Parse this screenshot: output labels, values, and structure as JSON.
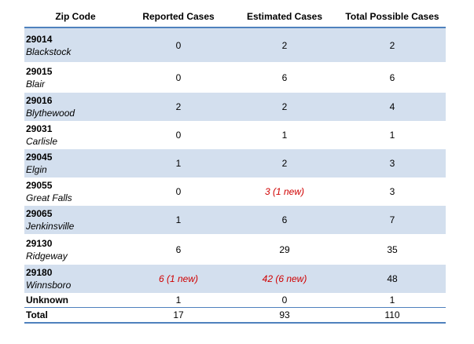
{
  "table": {
    "headers": [
      "Zip Code",
      "Reported Cases",
      "Estimated Cases",
      "Total Possible Cases"
    ],
    "rows": [
      {
        "zip": "29014",
        "town": "Blackstock",
        "reported": "0",
        "estimated": "2",
        "total": "2"
      },
      {
        "zip": "29015",
        "town": "Blair",
        "reported": "0",
        "estimated": "6",
        "total": "6"
      },
      {
        "zip": "29016",
        "town": "Blythewood",
        "reported": "2",
        "estimated": "2",
        "total": "4"
      },
      {
        "zip": "29031",
        "town": "Carlisle",
        "reported": "0",
        "estimated": "1",
        "total": "1"
      },
      {
        "zip": "29045",
        "town": "Elgin",
        "reported": "1",
        "estimated": "2",
        "total": "3"
      },
      {
        "zip": "29055",
        "town": "Great Falls",
        "reported": "0",
        "estimated": "3 (1 new)",
        "total": "3"
      },
      {
        "zip": "29065",
        "town": "Jenkinsville",
        "reported": "1",
        "estimated": "6",
        "total": "7"
      },
      {
        "zip": "29130",
        "town": "Ridgeway",
        "reported": "6",
        "estimated": "29",
        "total": "35"
      },
      {
        "zip": "29180",
        "town": "Winnsboro",
        "reported": "6 (1 new)",
        "estimated": "42 (6 new)",
        "total": "48"
      },
      {
        "label": "Unknown",
        "reported": "1",
        "estimated": "0",
        "total": "1"
      },
      {
        "label": "Total",
        "reported": "17",
        "estimated": "93",
        "total": "110"
      }
    ]
  },
  "colors": {
    "row_shading": "#d3dfee",
    "rule": "#4f81bd",
    "new_cases_text": "#d00000"
  }
}
